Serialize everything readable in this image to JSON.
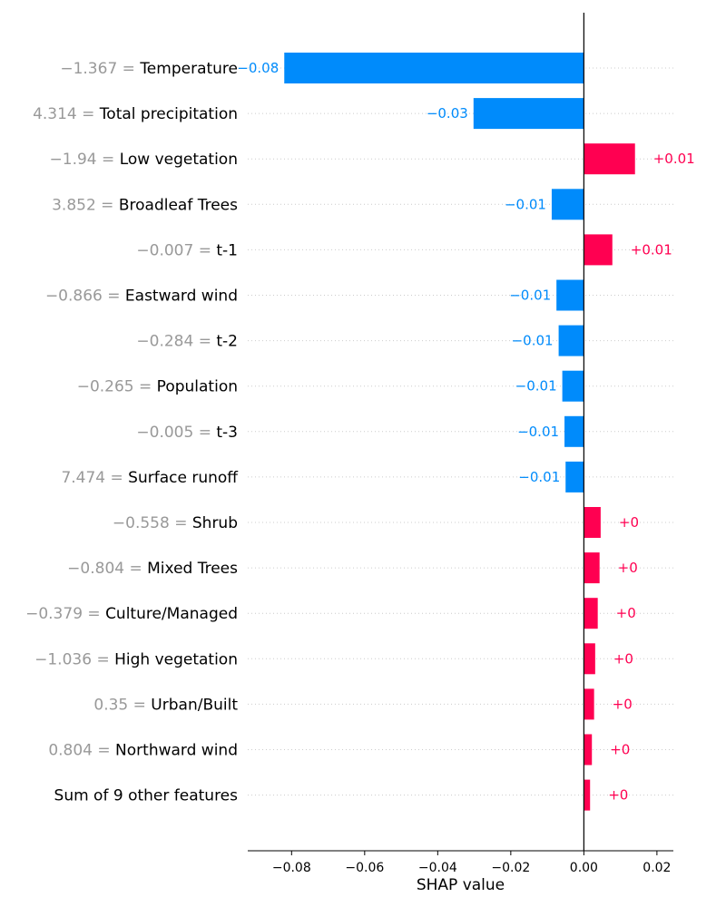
{
  "chart_data": {
    "type": "bar",
    "orientation": "horizontal",
    "title": "",
    "xlabel": "SHAP value",
    "ylabel": "",
    "xlim": [
      -0.092,
      0.0245
    ],
    "xticks": [
      -0.08,
      -0.06,
      -0.04,
      -0.02,
      0.0,
      0.02
    ],
    "xtick_labels": [
      "−0.08",
      "−0.06",
      "−0.04",
      "−0.02",
      "0.00",
      "0.02"
    ],
    "grid": "dotted horizontal row guides",
    "colors": {
      "positive": "#ff0051",
      "negative": "#008bfb",
      "value_label": "#999999",
      "feature_label": "#000000"
    },
    "rows": [
      {
        "value_text": "−1.367 =",
        "feature": "Temperature",
        "shap": -0.082,
        "bar_label": "−0.08"
      },
      {
        "value_text": "4.314 =",
        "feature": "Total precipitation",
        "shap": -0.0302,
        "bar_label": "−0.03"
      },
      {
        "value_text": "−1.94 =",
        "feature": "Low vegetation",
        "shap": 0.014,
        "bar_label": "+0.01"
      },
      {
        "value_text": "3.852 =",
        "feature": "Broadleaf Trees",
        "shap": -0.0088,
        "bar_label": "−0.01"
      },
      {
        "value_text": "−0.007 =",
        "feature": "t-1",
        "shap": 0.0078,
        "bar_label": "+0.01"
      },
      {
        "value_text": "−0.866 =",
        "feature": "Eastward wind",
        "shap": -0.0075,
        "bar_label": "−0.01"
      },
      {
        "value_text": "−0.284 =",
        "feature": "t-2",
        "shap": -0.0069,
        "bar_label": "−0.01"
      },
      {
        "value_text": "−0.265 =",
        "feature": "Population",
        "shap": -0.0059,
        "bar_label": "−0.01"
      },
      {
        "value_text": "−0.005 =",
        "feature": "t-3",
        "shap": -0.0053,
        "bar_label": "−0.01"
      },
      {
        "value_text": "7.474 =",
        "feature": "Surface runoff",
        "shap": -0.005,
        "bar_label": "−0.01"
      },
      {
        "value_text": "−0.558 =",
        "feature": "Shrub",
        "shap": 0.0046,
        "bar_label": "+0"
      },
      {
        "value_text": "−0.804 =",
        "feature": "Mixed Trees",
        "shap": 0.0043,
        "bar_label": "+0"
      },
      {
        "value_text": "−0.379 =",
        "feature": "Culture/Managed",
        "shap": 0.0038,
        "bar_label": "+0"
      },
      {
        "value_text": "−1.036 =",
        "feature": "High vegetation",
        "shap": 0.0031,
        "bar_label": "+0"
      },
      {
        "value_text": "0.35 =",
        "feature": "Urban/Built",
        "shap": 0.0028,
        "bar_label": "+0"
      },
      {
        "value_text": "0.804 =",
        "feature": "Northward wind",
        "shap": 0.0022,
        "bar_label": "+0"
      },
      {
        "value_text": "",
        "feature": "Sum of 9 other features",
        "shap": 0.0017,
        "bar_label": "+0"
      }
    ]
  }
}
